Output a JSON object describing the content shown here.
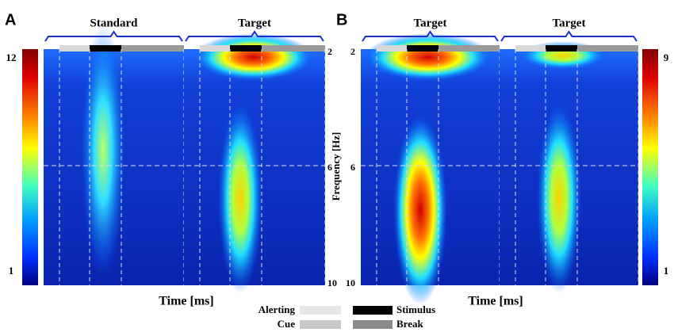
{
  "panels": [
    {
      "label": "A",
      "subpanels": [
        "Standard",
        "Target"
      ],
      "colorbar": {
        "max": 12,
        "min": 1
      }
    },
    {
      "label": "B",
      "subpanels": [
        "Target",
        "Target"
      ],
      "colorbar": {
        "max": 9,
        "min": 1
      }
    }
  ],
  "frequency_axis": {
    "label": "Frequency [Hz]",
    "ticks": [
      2,
      6,
      10
    ]
  },
  "time_axis": {
    "label": "Time [ms]"
  },
  "legend": [
    "Alerting",
    "Cue",
    "Stimulus",
    "Break"
  ]
}
